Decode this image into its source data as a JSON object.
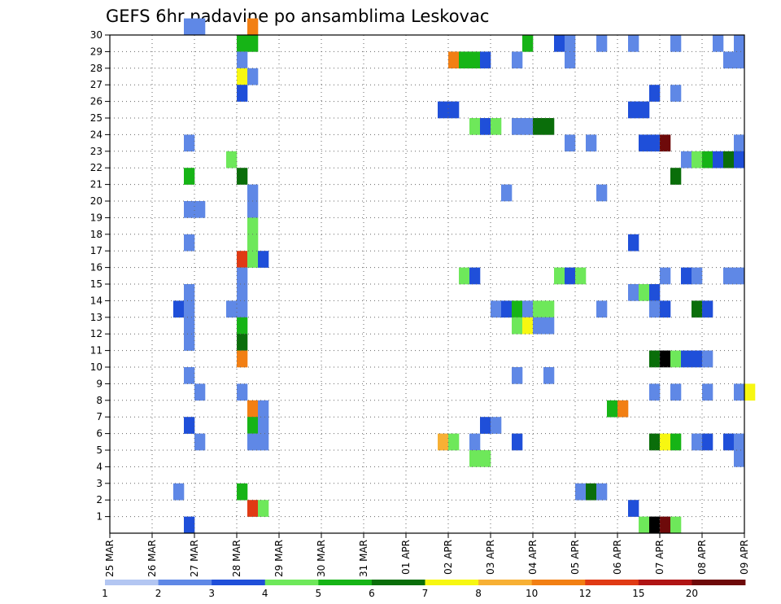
{
  "chart_data": {
    "type": "heatmap",
    "title": "GEFS 6hr padavine po ansamblima Leskovac",
    "xlabel": "",
    "ylabel": "",
    "x_tick_labels": [
      "25 MAR",
      "26 MAR",
      "27 MAR",
      "28 MAR",
      "29 MAR",
      "30 MAR",
      "31 MAR",
      "01 APR",
      "02 APR",
      "03 APR",
      "04 APR",
      "05 APR",
      "06 APR",
      "07 APR",
      "08 APR",
      "09 APR"
    ],
    "xlim_days": [
      0,
      15
    ],
    "y_tick_labels": [
      "1",
      "2",
      "3",
      "4",
      "5",
      "6",
      "7",
      "8",
      "9",
      "10",
      "11",
      "12",
      "13",
      "14",
      "15",
      "16",
      "17",
      "18",
      "19",
      "20",
      "21",
      "22",
      "23",
      "24",
      "25",
      "26",
      "27",
      "28",
      "29",
      "30"
    ],
    "ylim": [
      0,
      30
    ],
    "grid": true,
    "colorbar": {
      "labels": [
        "1",
        "2",
        "3",
        "4",
        "5",
        "6",
        "7",
        "8",
        "10",
        "12",
        "15",
        "20"
      ],
      "colors": [
        "#b3c6f2",
        "#5f88e6",
        "#1f4fd9",
        "#6ee85a",
        "#16b416",
        "#0a6e0a",
        "#f7f711",
        "#f7b034",
        "#f27f13",
        "#e03a14",
        "#b01414",
        "#6e0a0a"
      ]
    },
    "cells": [
      [
        1.75,
        30,
        1
      ],
      [
        2.0,
        30,
        1
      ],
      [
        3.25,
        30,
        8
      ],
      [
        3.0,
        29,
        4
      ],
      [
        3.25,
        29,
        4
      ],
      [
        9.75,
        29,
        4
      ],
      [
        10.5,
        29,
        2
      ],
      [
        10.75,
        29,
        1
      ],
      [
        11.5,
        29,
        1
      ],
      [
        12.25,
        29,
        1
      ],
      [
        13.25,
        29,
        1
      ],
      [
        14.25,
        29,
        1
      ],
      [
        14.75,
        29,
        1
      ],
      [
        3.0,
        28,
        1
      ],
      [
        8.0,
        28,
        8
      ],
      [
        8.25,
        28,
        4
      ],
      [
        8.5,
        28,
        4
      ],
      [
        8.75,
        28,
        2
      ],
      [
        9.5,
        28,
        1
      ],
      [
        10.75,
        28,
        1
      ],
      [
        14.5,
        28,
        1
      ],
      [
        14.75,
        28,
        1
      ],
      [
        3.0,
        27,
        6
      ],
      [
        3.25,
        27,
        1
      ],
      [
        3.0,
        26,
        2
      ],
      [
        12.75,
        26,
        2
      ],
      [
        13.25,
        26,
        1
      ],
      [
        7.75,
        25,
        2
      ],
      [
        8.0,
        25,
        2
      ],
      [
        12.25,
        25,
        2
      ],
      [
        12.5,
        25,
        2
      ],
      [
        8.5,
        24,
        3
      ],
      [
        8.75,
        24,
        2
      ],
      [
        9.0,
        24,
        3
      ],
      [
        9.5,
        24,
        1
      ],
      [
        9.75,
        24,
        1
      ],
      [
        10.0,
        24,
        5
      ],
      [
        10.25,
        24,
        5
      ],
      [
        1.75,
        23,
        1
      ],
      [
        10.75,
        23,
        1
      ],
      [
        11.25,
        23,
        1
      ],
      [
        12.5,
        23,
        2
      ],
      [
        12.75,
        23,
        2
      ],
      [
        13.0,
        23,
        11
      ],
      [
        14.75,
        23,
        1
      ],
      [
        2.75,
        22,
        3
      ],
      [
        13.5,
        22,
        1
      ],
      [
        13.75,
        22,
        3
      ],
      [
        14.0,
        22,
        4
      ],
      [
        14.25,
        22,
        2
      ],
      [
        14.5,
        22,
        5
      ],
      [
        14.75,
        22,
        2
      ],
      [
        1.75,
        21,
        4
      ],
      [
        3.0,
        21,
        5
      ],
      [
        13.25,
        21,
        5
      ],
      [
        3.25,
        20,
        1
      ],
      [
        9.25,
        20,
        1
      ],
      [
        11.5,
        20,
        1
      ],
      [
        1.75,
        19,
        1
      ],
      [
        2.0,
        19,
        1
      ],
      [
        3.25,
        19,
        1
      ],
      [
        3.25,
        18,
        3
      ],
      [
        1.75,
        17,
        1
      ],
      [
        3.25,
        17,
        3
      ],
      [
        12.25,
        17,
        2
      ],
      [
        3.0,
        16,
        9
      ],
      [
        3.25,
        16,
        3
      ],
      [
        3.5,
        16,
        2
      ],
      [
        3.0,
        15,
        1
      ],
      [
        8.25,
        15,
        3
      ],
      [
        8.5,
        15,
        2
      ],
      [
        10.5,
        15,
        3
      ],
      [
        10.75,
        15,
        2
      ],
      [
        11.0,
        15,
        3
      ],
      [
        13.0,
        15,
        1
      ],
      [
        13.5,
        15,
        2
      ],
      [
        13.75,
        15,
        1
      ],
      [
        14.5,
        15,
        1
      ],
      [
        14.75,
        15,
        1
      ],
      [
        1.75,
        14,
        1
      ],
      [
        3.0,
        14,
        1
      ],
      [
        12.25,
        14,
        1
      ],
      [
        12.5,
        14,
        3
      ],
      [
        12.75,
        14,
        2
      ],
      [
        1.5,
        13,
        2
      ],
      [
        1.75,
        13,
        1
      ],
      [
        2.75,
        13,
        1
      ],
      [
        3.0,
        13,
        1
      ],
      [
        9.0,
        13,
        1
      ],
      [
        9.25,
        13,
        2
      ],
      [
        9.5,
        13,
        4
      ],
      [
        9.75,
        13,
        1
      ],
      [
        10.0,
        13,
        3
      ],
      [
        10.25,
        13,
        3
      ],
      [
        11.5,
        13,
        1
      ],
      [
        12.75,
        13,
        1
      ],
      [
        13.0,
        13,
        2
      ],
      [
        13.75,
        13,
        5
      ],
      [
        14.0,
        13,
        2
      ],
      [
        1.75,
        12,
        1
      ],
      [
        3.0,
        12,
        4
      ],
      [
        9.5,
        12,
        3
      ],
      [
        9.75,
        12,
        6
      ],
      [
        10.0,
        12,
        1
      ],
      [
        10.25,
        12,
        1
      ],
      [
        1.75,
        11,
        1
      ],
      [
        3.0,
        11,
        5
      ],
      [
        3.0,
        10,
        8
      ],
      [
        12.75,
        10,
        5
      ],
      [
        13.0,
        10,
        12
      ],
      [
        13.25,
        10,
        3
      ],
      [
        13.5,
        10,
        2
      ],
      [
        13.75,
        10,
        2
      ],
      [
        14.0,
        10,
        1
      ],
      [
        1.75,
        9,
        1
      ],
      [
        9.5,
        9,
        1
      ],
      [
        10.25,
        9,
        1
      ],
      [
        2.0,
        8,
        1
      ],
      [
        3.0,
        8,
        1
      ],
      [
        12.75,
        8,
        1
      ],
      [
        13.25,
        8,
        1
      ],
      [
        14.0,
        8,
        1
      ],
      [
        14.75,
        8,
        1
      ],
      [
        15.0,
        8,
        6
      ],
      [
        3.25,
        7,
        8
      ],
      [
        3.5,
        7,
        1
      ],
      [
        11.75,
        7,
        4
      ],
      [
        12.0,
        7,
        8
      ],
      [
        1.75,
        6,
        2
      ],
      [
        3.25,
        6,
        4
      ],
      [
        3.5,
        6,
        1
      ],
      [
        8.75,
        6,
        2
      ],
      [
        9.0,
        6,
        1
      ],
      [
        2.0,
        5,
        1
      ],
      [
        3.25,
        5,
        1
      ],
      [
        3.5,
        5,
        1
      ],
      [
        7.75,
        5,
        7
      ],
      [
        8.0,
        5,
        3
      ],
      [
        8.5,
        5,
        1
      ],
      [
        9.5,
        5,
        2
      ],
      [
        12.75,
        5,
        5
      ],
      [
        13.0,
        5,
        6
      ],
      [
        13.25,
        5,
        4
      ],
      [
        13.75,
        5,
        1
      ],
      [
        14.0,
        5,
        2
      ],
      [
        14.5,
        5,
        2
      ],
      [
        14.75,
        5,
        1
      ],
      [
        8.5,
        4,
        3
      ],
      [
        8.75,
        4,
        3
      ],
      [
        14.75,
        4,
        1
      ],
      [
        1.5,
        2,
        1
      ],
      [
        3.0,
        2,
        4
      ],
      [
        11.0,
        2,
        1
      ],
      [
        11.25,
        2,
        5
      ],
      [
        11.5,
        2,
        1
      ],
      [
        3.25,
        1,
        9
      ],
      [
        3.5,
        1,
        3
      ],
      [
        12.25,
        1,
        2
      ],
      [
        1.75,
        0,
        2
      ],
      [
        12.5,
        0,
        3
      ],
      [
        12.75,
        0,
        12
      ],
      [
        13.0,
        0,
        11
      ],
      [
        13.25,
        0,
        3
      ]
    ]
  }
}
